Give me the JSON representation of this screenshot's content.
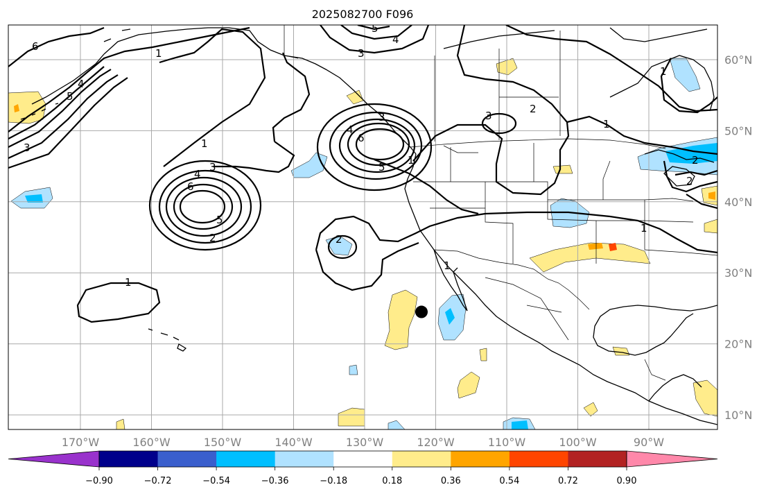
{
  "title": "2025082700 F096",
  "lon_labels": [
    "170°W",
    "160°W",
    "150°W",
    "140°W",
    "130°W",
    "120°W",
    "110°W",
    "100°W",
    "90°W"
  ],
  "lat_labels": [
    "60°N",
    "50°N",
    "40°N",
    "30°N",
    "20°N",
    "10°N"
  ],
  "colorbar": {
    "ticks": [
      "−0.90",
      "−0.72",
      "−0.54",
      "−0.36",
      "−0.18",
      "0.18",
      "0.36",
      "0.54",
      "0.72",
      "0.90"
    ],
    "colors": [
      "#9932cc",
      "#00008b",
      "#3a5fcd",
      "#00bfff",
      "#b0e2ff",
      "#ffffff",
      "#ffec8b",
      "#ffa500",
      "#ff4500",
      "#b22222",
      "#ff88aa"
    ]
  },
  "contour_labels": [
    "6",
    "1",
    "5",
    "4",
    "3",
    "1",
    "5",
    "4",
    "3",
    "3",
    "2",
    "1",
    "1",
    "5",
    "6",
    "4",
    "3",
    "1",
    "2",
    "3",
    "4",
    "6",
    "5",
    "2",
    "2",
    "1",
    "1",
    "1",
    "2"
  ],
  "colors": {
    "pos_fill": "#ffec8b",
    "pos_strong": "#ffa500",
    "pos_stronger": "#ff4500",
    "neg_fill": "#b0e2ff",
    "neg_strong": "#00bfff",
    "grid": "#a9a9a9",
    "marker": "#000000"
  },
  "marker": {
    "name": "storm-center",
    "lon": -122.0,
    "lat": 24.5
  }
}
